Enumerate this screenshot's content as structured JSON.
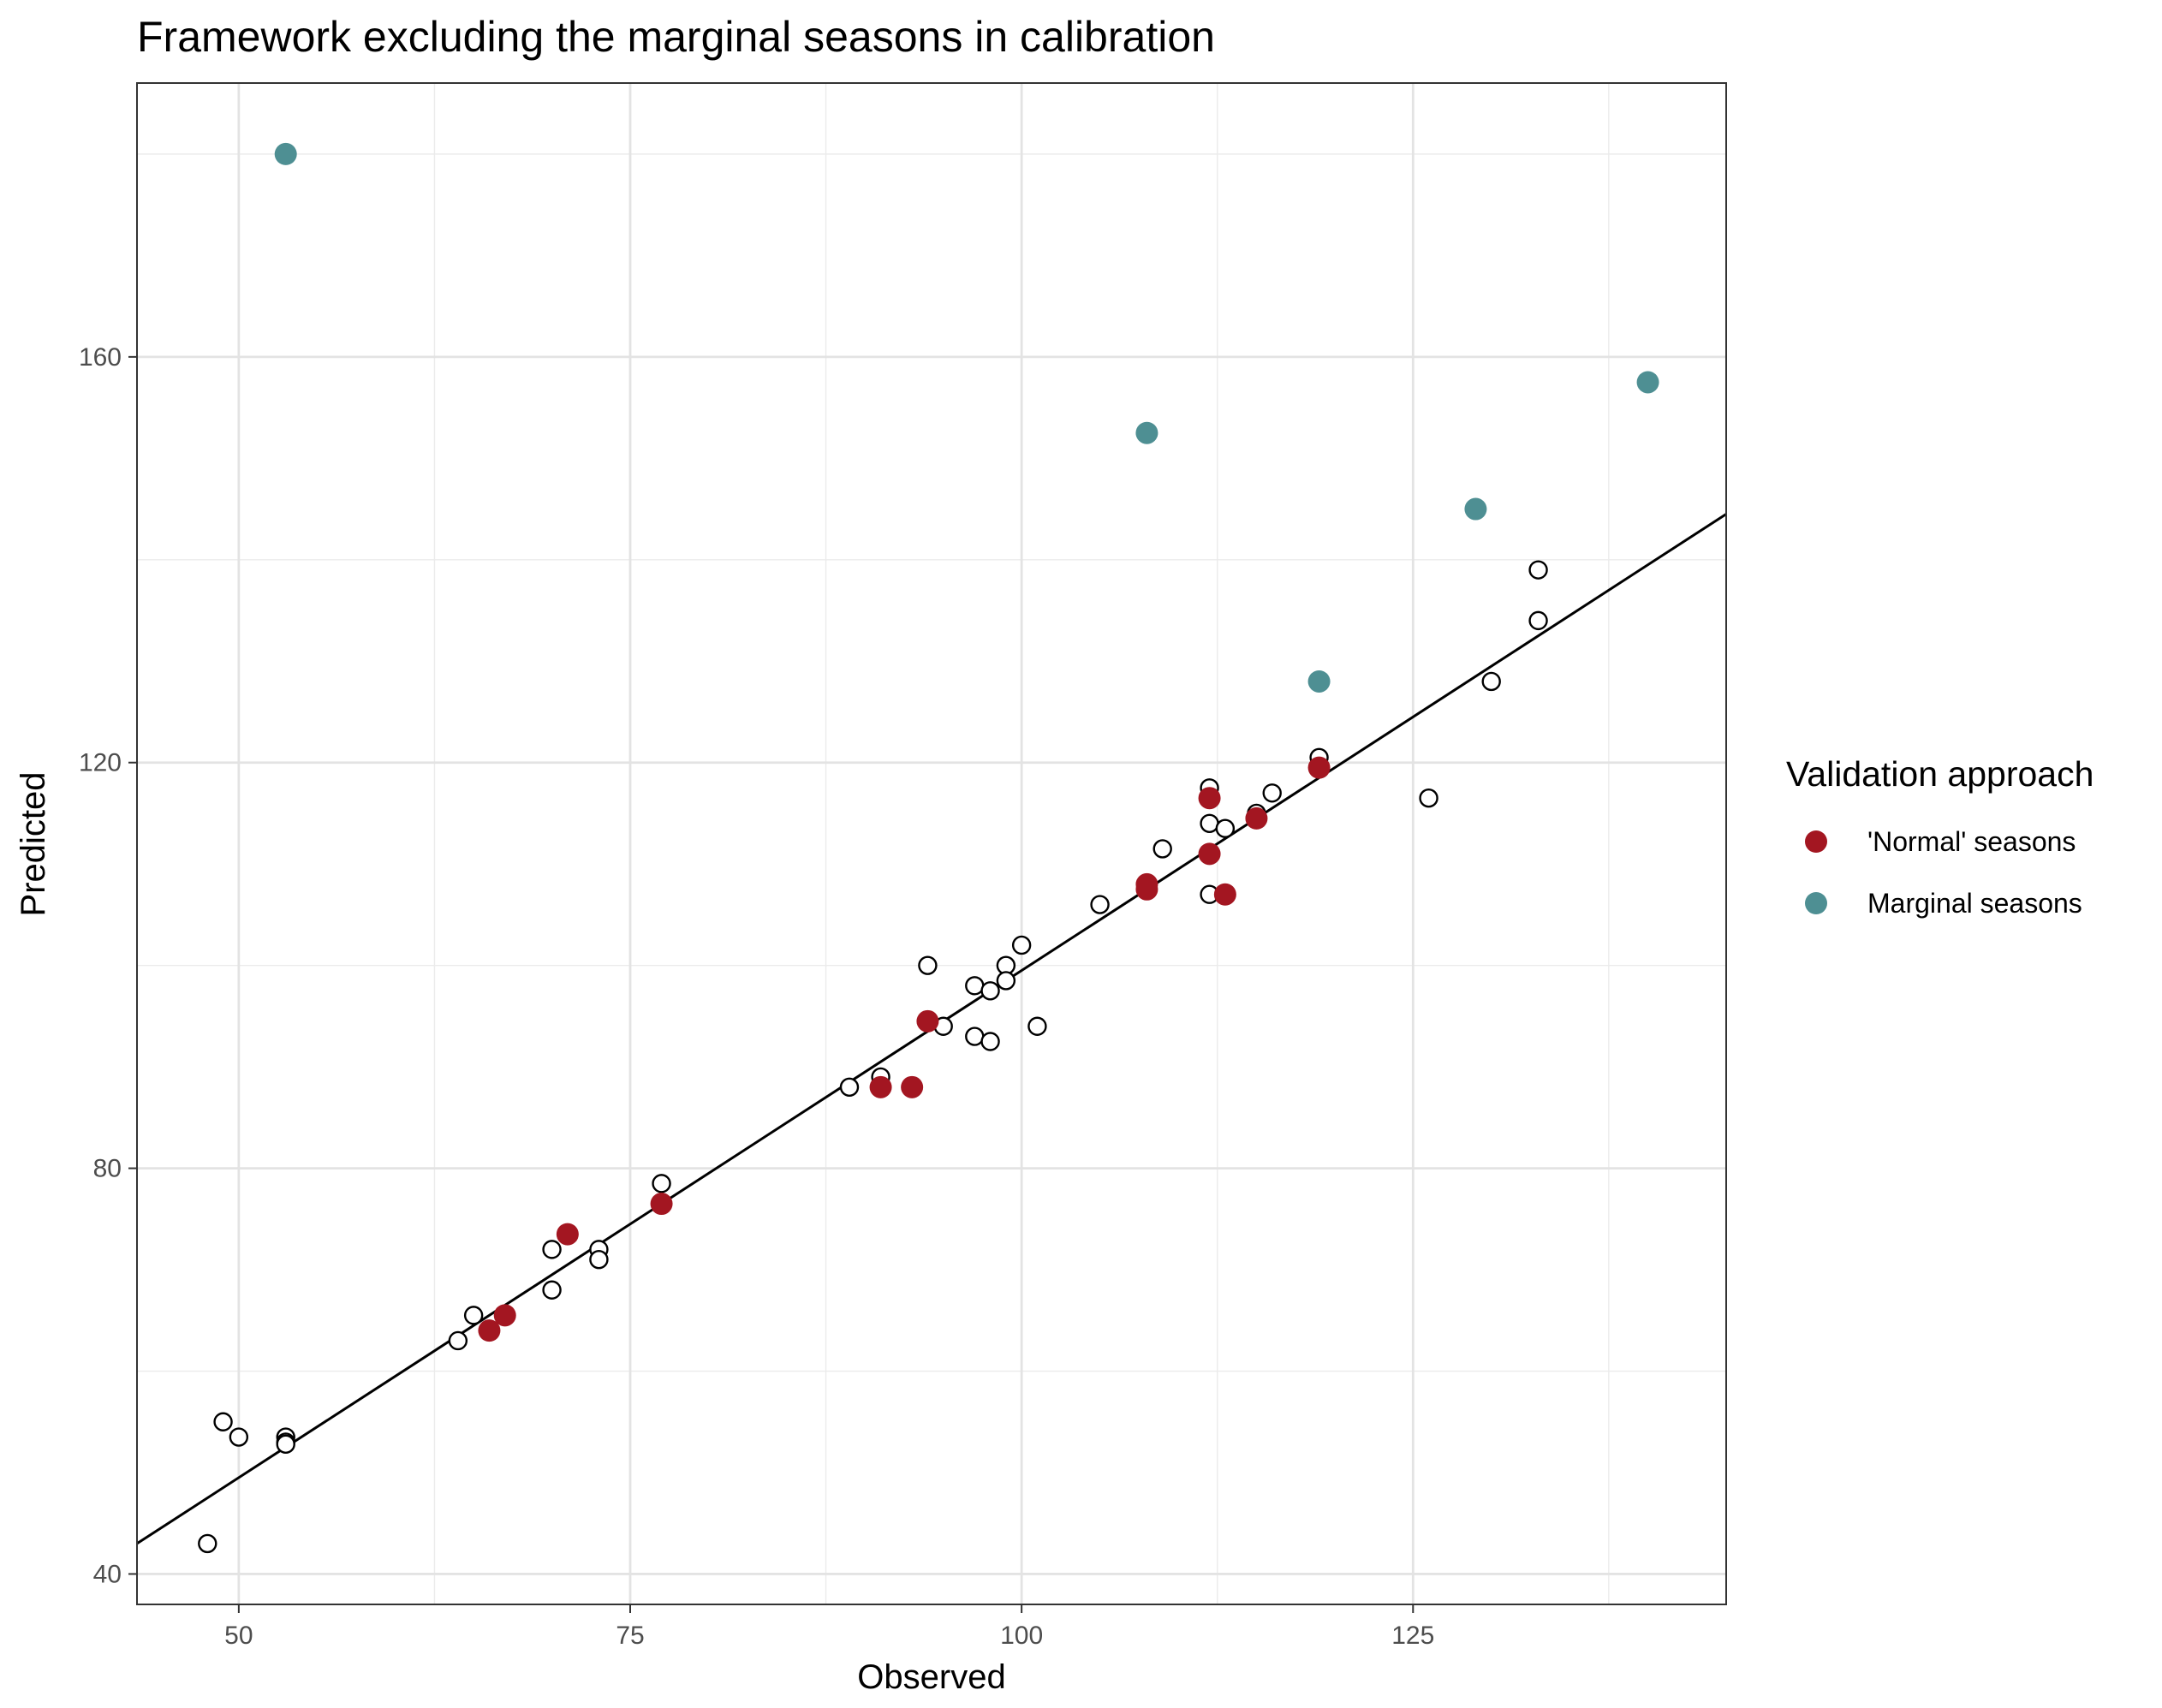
{
  "chart_data": {
    "type": "scatter",
    "title": "Framework excluding the marginal seasons in calibration",
    "xlabel": "Observed",
    "ylabel": "Predicted",
    "xlim": [
      43.5,
      145
    ],
    "ylim": [
      37,
      187
    ],
    "x_ticks": [
      50,
      75,
      100,
      125
    ],
    "y_ticks": [
      40,
      80,
      120,
      160
    ],
    "x_tick_labels": [
      "50",
      "75",
      "100",
      "125"
    ],
    "y_tick_labels": [
      "40",
      "80",
      "120",
      "160"
    ],
    "grid": true,
    "legend": {
      "title": "Validation approach",
      "placement": "right",
      "entries": [
        "'Normal' seasons",
        "Marginal seasons"
      ]
    },
    "fit_line": {
      "x": [
        43.5,
        145
      ],
      "y": [
        43.0,
        144.5
      ]
    },
    "series": [
      {
        "key": "calibration",
        "color": "#000000",
        "marker": "open-circle",
        "points": [
          [
            48,
            43
          ],
          [
            49,
            55
          ],
          [
            50,
            53.5
          ],
          [
            53,
            53.5
          ],
          [
            53,
            53
          ],
          [
            53,
            52.8
          ],
          [
            64,
            63
          ],
          [
            65,
            65.5
          ],
          [
            70,
            72
          ],
          [
            70,
            68
          ],
          [
            73,
            72
          ],
          [
            73,
            71
          ],
          [
            77,
            78.5
          ],
          [
            89,
            88
          ],
          [
            91,
            89
          ],
          [
            94,
            100
          ],
          [
            95,
            94
          ],
          [
            97,
            98
          ],
          [
            97,
            93
          ],
          [
            98,
            97.5
          ],
          [
            98,
            92.5
          ],
          [
            99,
            100
          ],
          [
            99,
            98.5
          ],
          [
            100,
            102
          ],
          [
            101,
            94
          ],
          [
            105,
            106
          ],
          [
            109,
            111.5
          ],
          [
            112,
            117.5
          ],
          [
            112,
            114
          ],
          [
            112,
            107
          ],
          [
            113,
            113.5
          ],
          [
            115,
            115
          ],
          [
            116,
            117
          ],
          [
            119,
            120.5
          ],
          [
            126,
            116.5
          ],
          [
            130,
            128
          ],
          [
            133,
            139
          ],
          [
            133,
            134
          ]
        ]
      },
      {
        "key": "normal",
        "name": "'Normal' seasons",
        "color": "#a31621",
        "marker": "filled-circle",
        "points": [
          [
            66,
            64
          ],
          [
            67,
            65.5
          ],
          [
            71,
            73.5
          ],
          [
            77,
            76.5
          ],
          [
            91,
            88
          ],
          [
            93,
            88
          ],
          [
            94,
            94.5
          ],
          [
            108,
            108
          ],
          [
            108,
            107.5
          ],
          [
            112,
            116.5
          ],
          [
            112,
            111
          ],
          [
            113,
            107
          ],
          [
            115,
            114.5
          ],
          [
            119,
            119.5
          ]
        ]
      },
      {
        "key": "marginal",
        "name": "Marginal seasons",
        "color": "#4e8f93",
        "marker": "filled-circle",
        "points": [
          [
            53,
            180
          ],
          [
            108,
            152.5
          ],
          [
            119,
            128
          ],
          [
            129,
            145
          ],
          [
            140,
            157.5
          ]
        ]
      }
    ]
  }
}
